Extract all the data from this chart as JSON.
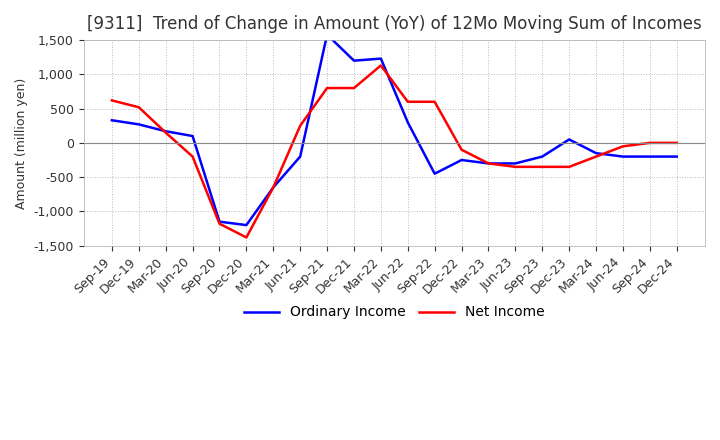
{
  "title": "[9311]  Trend of Change in Amount (YoY) of 12Mo Moving Sum of Incomes",
  "ylabel": "Amount (million yen)",
  "ylim": [
    -1500,
    1500
  ],
  "yticks": [
    -1500,
    -1000,
    -500,
    0,
    500,
    1000,
    1500
  ],
  "x_labels": [
    "Sep-19",
    "Dec-19",
    "Mar-20",
    "Jun-20",
    "Sep-20",
    "Dec-20",
    "Mar-21",
    "Jun-21",
    "Sep-21",
    "Dec-21",
    "Mar-22",
    "Jun-22",
    "Sep-22",
    "Dec-22",
    "Mar-23",
    "Jun-23",
    "Sep-23",
    "Dec-23",
    "Mar-24",
    "Jun-24",
    "Sep-24",
    "Dec-24"
  ],
  "ordinary_income": [
    330,
    270,
    170,
    100,
    -1150,
    -1200,
    -650,
    -200,
    1580,
    1200,
    1230,
    300,
    -450,
    -250,
    -300,
    -300,
    -200,
    50,
    -150,
    -200,
    -200,
    -200
  ],
  "net_income": [
    620,
    520,
    150,
    -200,
    -1180,
    -1380,
    -650,
    250,
    800,
    800,
    1130,
    600,
    600,
    -100,
    -300,
    -350,
    -350,
    -350,
    -200,
    -50,
    0,
    0
  ],
  "ordinary_color": "#0000ff",
  "net_color": "#ff0000",
  "line_width": 1.8,
  "background_color": "#ffffff",
  "grid_color": "#bbbbbb",
  "title_color": "#333333",
  "title_fontsize": 12,
  "tick_fontsize": 9,
  "ylabel_fontsize": 9,
  "legend_labels": [
    "Ordinary Income",
    "Net Income"
  ]
}
